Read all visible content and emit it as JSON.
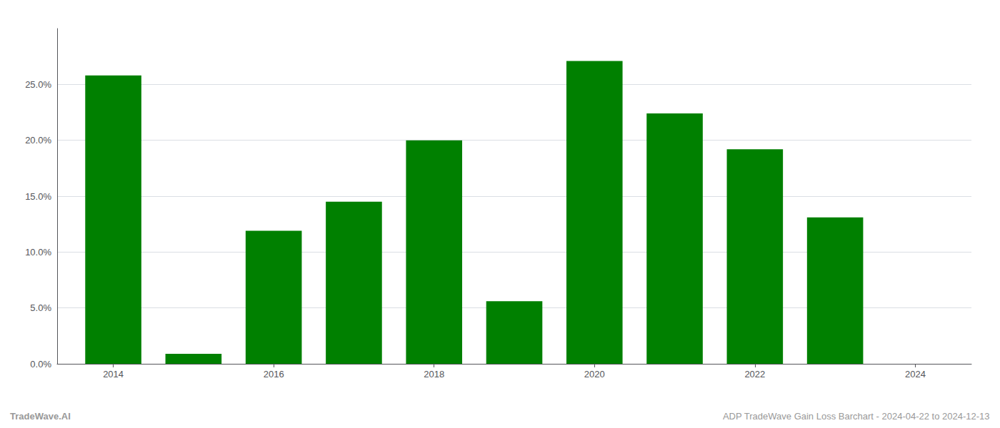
{
  "chart_data": {
    "type": "bar",
    "x": [
      2014,
      2015,
      2016,
      2017,
      2018,
      2019,
      2020,
      2021,
      2022,
      2023
    ],
    "values": [
      0.258,
      0.009,
      0.119,
      0.145,
      0.2,
      0.056,
      0.271,
      0.224,
      0.192,
      0.131
    ],
    "color": "#008000",
    "xlim": [
      2013.3,
      2024.7
    ],
    "xticks": [
      2014,
      2016,
      2018,
      2020,
      2022,
      2024
    ],
    "ylim": [
      0,
      0.3
    ],
    "yticks": [
      {
        "value": 0.0,
        "label": "0.0%"
      },
      {
        "value": 0.05,
        "label": "5.0%"
      },
      {
        "value": 0.1,
        "label": "10.0%"
      },
      {
        "value": 0.15,
        "label": "15.0%"
      },
      {
        "value": 0.2,
        "label": "20.0%"
      },
      {
        "value": 0.25,
        "label": "25.0%"
      }
    ],
    "grid": true,
    "annotations": [
      "TradeWave.AI",
      "ADP TradeWave Gain Loss Barchart - 2024-04-22 to 2024-12-13"
    ]
  }
}
